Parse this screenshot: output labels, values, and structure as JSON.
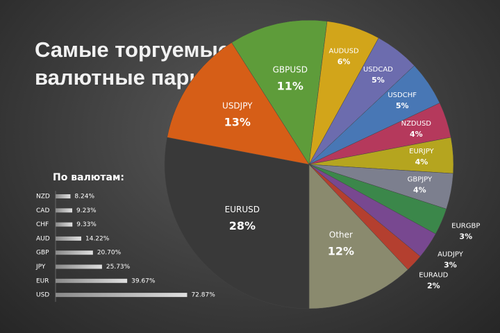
{
  "chart_data": [
    {
      "type": "pie",
      "title": "Самые торгуемые валютные пары",
      "categories": [
        "GBPUSD",
        "AUDUSD",
        "USDCAD",
        "USDCHF",
        "NZDUSD",
        "EURJPY",
        "GBPJPY",
        "EURGBP",
        "AUDJPY",
        "EURAUD",
        "Other",
        "EURUSD",
        "USDJPY"
      ],
      "values": [
        11,
        6,
        5,
        5,
        4,
        4,
        4,
        3,
        3,
        2,
        12,
        28,
        13
      ],
      "value_labels": [
        "11%",
        "6%",
        "5%",
        "5%",
        "4%",
        "4%",
        "4%",
        "3%",
        "3%",
        "2%",
        "12%",
        "28%",
        "13%"
      ],
      "colors": [
        "#5e9c3a",
        "#d2a51a",
        "#6c6cae",
        "#4877b5",
        "#b5395c",
        "#b5a51f",
        "#7c7f8e",
        "#3b874a",
        "#784890",
        "#b43f2f",
        "#8a8a6e",
        "#393939",
        "#d65e17"
      ]
    },
    {
      "type": "bar",
      "title": "По валютам:",
      "categories": [
        "NZD",
        "CAD",
        "CHF",
        "AUD",
        "GBP",
        "JPY",
        "EUR",
        "USD"
      ],
      "values": [
        8.24,
        9.23,
        9.33,
        14.22,
        20.7,
        25.73,
        39.67,
        72.87
      ],
      "value_labels": [
        "8.24%",
        "9.23%",
        "9.33%",
        "14.22%",
        "20.70%",
        "25.73%",
        "39.67%",
        "72.87%"
      ],
      "orientation": "horizontal"
    }
  ]
}
